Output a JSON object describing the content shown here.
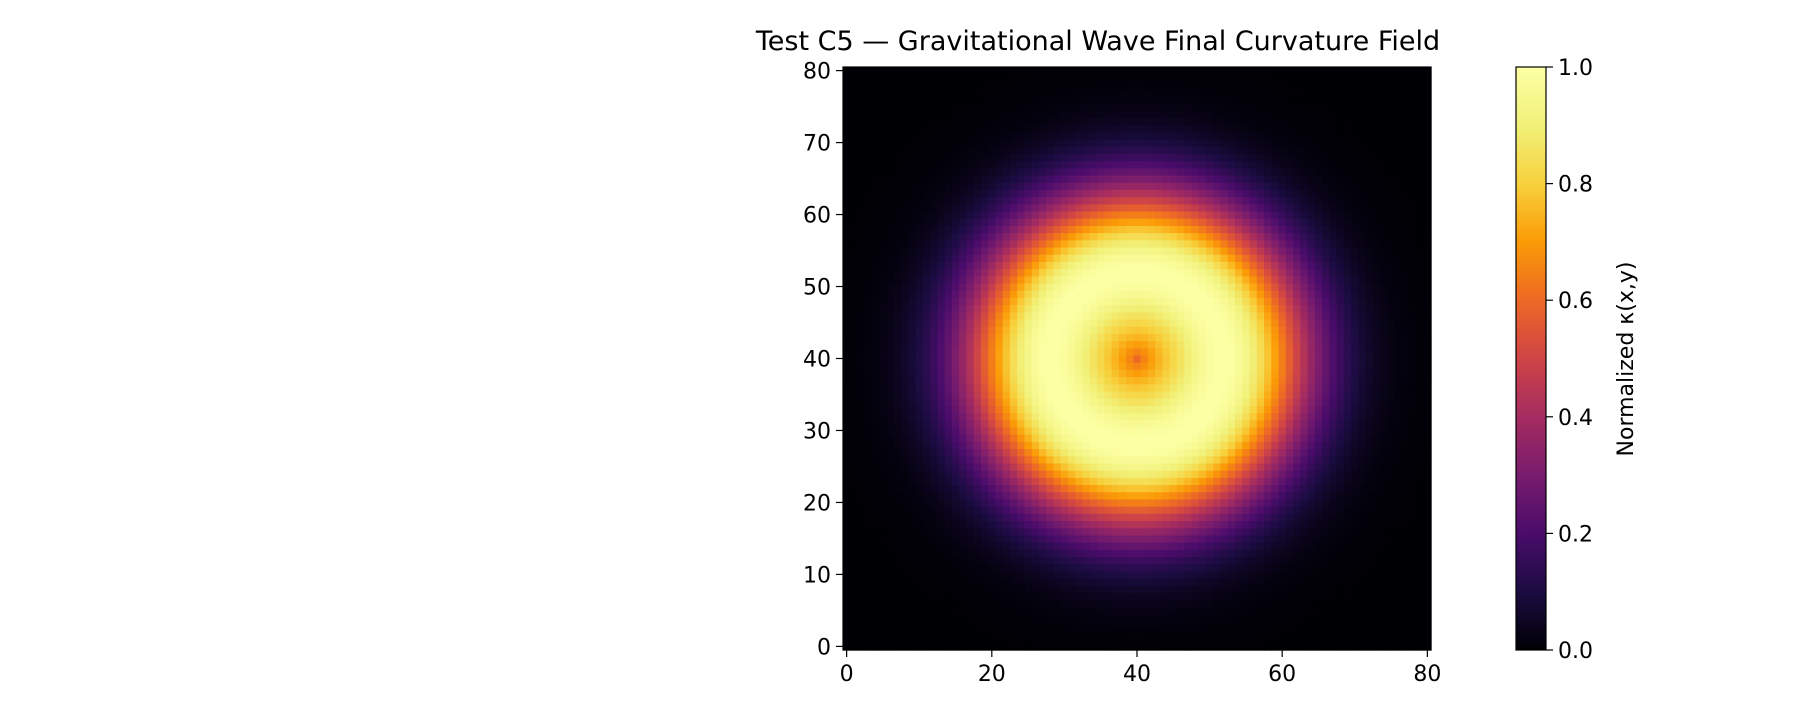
{
  "chart_data": {
    "type": "heatmap",
    "title": "Test C5 — Gravitational Wave Final Curvature Field",
    "xlabel": "",
    "ylabel": "",
    "xlim": [
      0,
      80
    ],
    "ylim": [
      0,
      80
    ],
    "grid_size": 81,
    "x_ticks": [
      0,
      20,
      40,
      60,
      80
    ],
    "y_ticks": [
      0,
      10,
      20,
      30,
      40,
      50,
      60,
      70,
      80
    ],
    "grid": false,
    "colormap": "inferno",
    "field": {
      "description_shape": "ring",
      "center": [
        40,
        40
      ],
      "center_value": 0.6,
      "ring_radius": 12,
      "ring_peak_value": 1.0,
      "ring_width_sigma": 8.5
    },
    "colorbar": {
      "label": "Normalized κ(x,y)",
      "range": [
        0.0,
        1.0
      ],
      "ticks": [
        "0.0",
        "0.2",
        "0.4",
        "0.6",
        "0.8",
        "1.0"
      ],
      "placement": "right"
    }
  }
}
